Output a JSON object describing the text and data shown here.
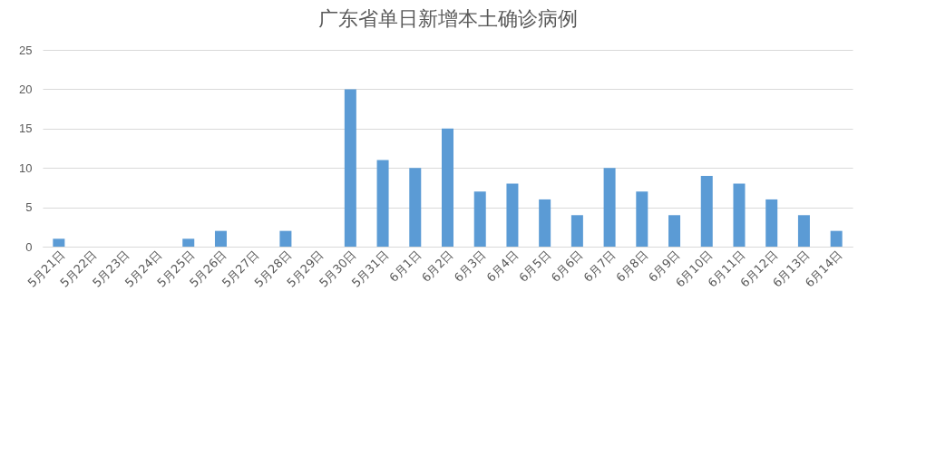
{
  "chart_data": {
    "type": "bar",
    "title": "广东省单日新增本土确诊病例",
    "categories": [
      "5月21日",
      "5月22日",
      "5月23日",
      "5月24日",
      "5月25日",
      "5月26日",
      "5月27日",
      "5月28日",
      "5月29日",
      "5月30日",
      "5月31日",
      "6月1日",
      "6月2日",
      "6月3日",
      "6月4日",
      "6月5日",
      "6月6日",
      "6月7日",
      "6月8日",
      "6月9日",
      "6月10日",
      "6月11日",
      "6月12日",
      "6月13日",
      "6月14日"
    ],
    "values": [
      1,
      0,
      0,
      0,
      1,
      2,
      0,
      2,
      0,
      20,
      11,
      10,
      15,
      7,
      8,
      6,
      4,
      10,
      7,
      4,
      9,
      8,
      6,
      4,
      2
    ],
    "color": "#5b9bd5",
    "ylim": [
      0,
      25
    ],
    "yticks": [
      0,
      5,
      10,
      15,
      20,
      25
    ],
    "grid": "y"
  }
}
